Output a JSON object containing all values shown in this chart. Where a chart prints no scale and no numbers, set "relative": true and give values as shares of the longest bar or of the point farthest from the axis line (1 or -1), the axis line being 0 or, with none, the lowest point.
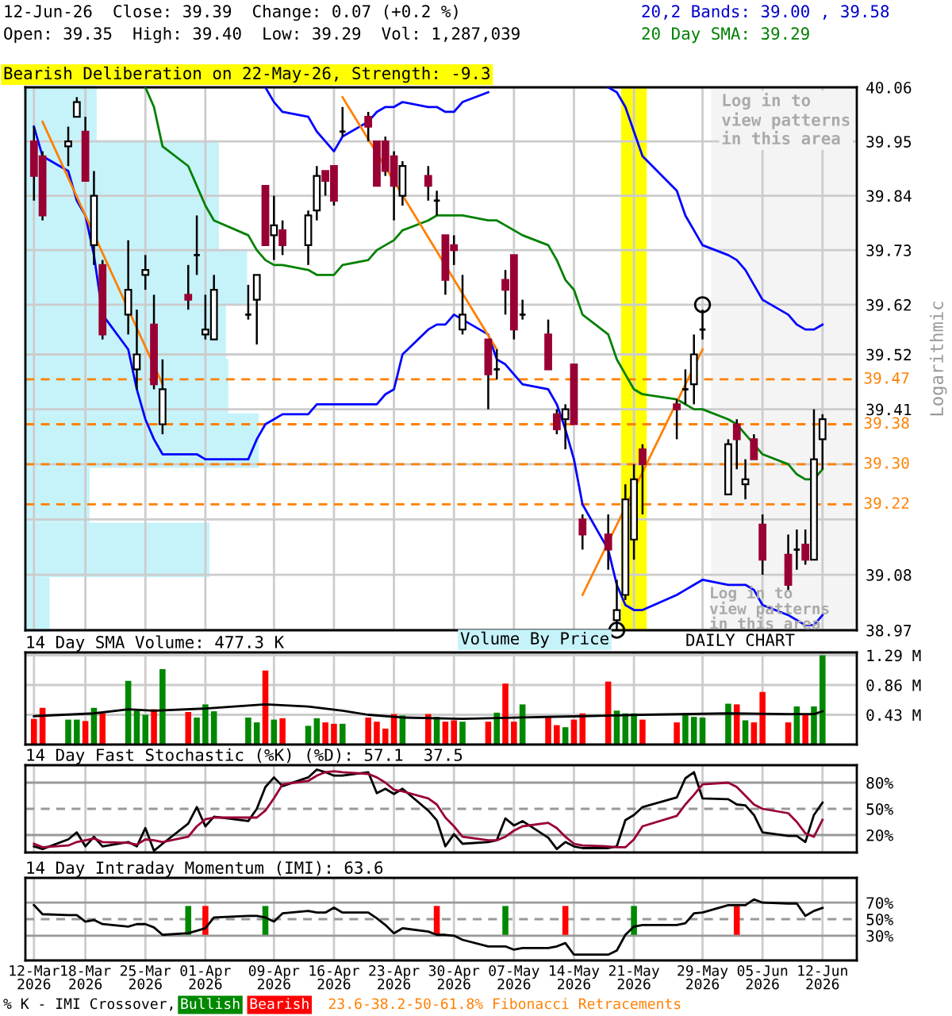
{
  "chart_data": [
    {
      "type": "candlestick",
      "title": "12-Jun-26  Close: 39.39  Change: 0.07 (+0.2 %)",
      "subtitle": "Open: 39.35  High: 39.40  Low: 39.29  Vol: 1,287,039",
      "ylabel": "Logarithmic",
      "x": [
        "2026-03-12",
        "2026-03-13",
        "2026-03-16",
        "2026-03-17",
        "2026-03-18",
        "2026-03-19",
        "2026-03-20",
        "2026-03-23",
        "2026-03-24",
        "2026-03-25",
        "2026-03-26",
        "2026-03-27",
        "2026-03-30",
        "2026-03-31",
        "2026-04-01",
        "2026-04-02",
        "2026-04-06",
        "2026-04-07",
        "2026-04-08",
        "2026-04-09",
        "2026-04-10",
        "2026-04-13",
        "2026-04-14",
        "2026-04-15",
        "2026-04-16",
        "2026-04-17",
        "2026-04-20",
        "2026-04-21",
        "2026-04-22",
        "2026-04-23",
        "2026-04-24",
        "2026-04-27",
        "2026-04-28",
        "2026-04-29",
        "2026-04-30",
        "2026-05-01",
        "2026-05-04",
        "2026-05-05",
        "2026-05-06",
        "2026-05-07",
        "2026-05-08",
        "2026-05-11",
        "2026-05-12",
        "2026-05-13",
        "2026-05-14",
        "2026-05-15",
        "2026-05-18",
        "2026-05-19",
        "2026-05-20",
        "2026-05-21",
        "2026-05-22",
        "2026-05-26",
        "2026-05-27",
        "2026-05-28",
        "2026-05-29",
        "2026-06-01",
        "2026-06-02",
        "2026-06-03",
        "2026-06-04",
        "2026-06-05",
        "2026-06-08",
        "2026-06-09",
        "2026-06-10",
        "2026-06-11",
        "2026-06-12"
      ],
      "ohlc": [
        [
          39.95,
          39.98,
          39.83,
          39.88
        ],
        [
          39.92,
          39.93,
          39.79,
          39.8
        ],
        [
          39.94,
          39.98,
          39.9,
          39.95
        ],
        [
          40.0,
          40.04,
          40.0,
          40.03
        ],
        [
          39.97,
          40.0,
          39.87,
          39.87
        ],
        [
          39.74,
          39.89,
          39.7,
          39.84
        ],
        [
          39.7,
          39.71,
          39.55,
          39.56
        ],
        [
          39.6,
          39.75,
          39.56,
          39.65
        ],
        [
          39.49,
          39.61,
          39.45,
          39.52
        ],
        [
          39.68,
          39.72,
          39.65,
          39.69
        ],
        [
          39.58,
          39.64,
          39.45,
          39.46
        ],
        [
          39.38,
          39.51,
          39.36,
          39.45
        ],
        [
          39.64,
          39.7,
          39.61,
          39.63
        ],
        [
          39.72,
          39.8,
          39.68,
          39.72
        ],
        [
          39.56,
          39.64,
          39.55,
          39.57
        ],
        [
          39.55,
          39.68,
          39.55,
          39.65
        ],
        [
          39.6,
          39.66,
          39.59,
          39.6
        ],
        [
          39.63,
          39.68,
          39.54,
          39.68
        ],
        [
          39.86,
          39.86,
          39.74,
          39.74
        ],
        [
          39.76,
          39.84,
          39.71,
          39.78
        ],
        [
          39.77,
          39.79,
          39.72,
          39.74
        ],
        [
          39.74,
          39.81,
          39.7,
          39.8
        ],
        [
          39.81,
          39.9,
          39.79,
          39.88
        ],
        [
          39.89,
          39.89,
          39.84,
          39.87
        ],
        [
          39.9,
          39.9,
          39.82,
          39.83
        ],
        [
          39.97,
          40.02,
          39.96,
          39.97
        ],
        [
          40.0,
          40.01,
          39.95,
          39.98
        ],
        [
          39.95,
          39.95,
          39.86,
          39.86
        ],
        [
          39.95,
          39.96,
          39.88,
          39.89
        ],
        [
          39.92,
          39.93,
          39.79,
          39.86
        ],
        [
          39.84,
          39.91,
          39.82,
          39.9
        ],
        [
          39.88,
          39.9,
          39.83,
          39.86
        ],
        [
          39.83,
          39.85,
          39.8,
          39.83
        ],
        [
          39.76,
          39.76,
          39.64,
          39.67
        ],
        [
          39.74,
          39.76,
          39.7,
          39.73
        ],
        [
          39.57,
          39.68,
          39.56,
          39.6
        ],
        [
          39.55,
          39.55,
          39.41,
          39.48
        ],
        [
          39.49,
          39.53,
          39.47,
          39.49
        ],
        [
          39.67,
          39.69,
          39.6,
          39.65
        ],
        [
          39.72,
          39.72,
          39.55,
          39.57
        ],
        [
          39.6,
          39.63,
          39.59,
          39.6
        ],
        [
          39.56,
          39.59,
          39.49,
          39.49
        ],
        [
          39.4,
          39.41,
          39.36,
          39.37
        ],
        [
          39.39,
          39.42,
          39.33,
          39.41
        ],
        [
          39.5,
          39.5,
          39.38,
          39.38
        ],
        [
          39.19,
          39.2,
          39.13,
          39.16
        ],
        [
          39.16,
          39.2,
          39.09,
          39.13
        ],
        [
          38.99,
          39.07,
          38.97,
          39.01
        ],
        [
          39.04,
          39.26,
          39.03,
          39.23
        ],
        [
          39.15,
          39.3,
          39.11,
          39.27
        ],
        [
          39.33,
          39.34,
          39.2,
          39.3
        ],
        [
          39.42,
          39.43,
          39.35,
          39.41
        ],
        [
          39.45,
          39.49,
          39.42,
          39.45
        ],
        [
          39.46,
          39.56,
          39.42,
          39.52
        ],
        [
          39.57,
          39.61,
          39.55,
          39.57
        ],
        [
          39.24,
          39.35,
          39.24,
          39.34
        ],
        [
          39.38,
          39.39,
          39.29,
          39.35
        ],
        [
          39.26,
          39.31,
          39.23,
          39.27
        ],
        [
          39.35,
          39.36,
          39.31,
          39.31
        ],
        [
          39.18,
          39.2,
          39.08,
          39.11
        ],
        [
          39.12,
          39.16,
          39.05,
          39.06
        ],
        [
          39.13,
          39.17,
          39.09,
          39.13
        ],
        [
          39.14,
          39.17,
          39.1,
          39.11
        ],
        [
          39.11,
          39.41,
          39.11,
          39.31
        ],
        [
          39.35,
          39.4,
          39.29,
          39.39
        ]
      ],
      "colors": [
        "#990033",
        "#990033",
        "#ffffff",
        "#ffffff",
        "#990033",
        "#ffffff",
        "#990033",
        "#ffffff",
        "#ffffff",
        "#ffffff",
        "#990033",
        "#ffffff",
        "#990033",
        "#000000",
        "#ffffff",
        "#ffffff",
        "#000000",
        "#ffffff",
        "#990033",
        "#ffffff",
        "#990033",
        "#ffffff",
        "#ffffff",
        "#990033",
        "#990033",
        "#000000",
        "#990033",
        "#990033",
        "#990033",
        "#990033",
        "#ffffff",
        "#990033",
        "#000000",
        "#990033",
        "#990033",
        "#ffffff",
        "#990033",
        "#000000",
        "#990033",
        "#990033",
        "#000000",
        "#990033",
        "#990033",
        "#ffffff",
        "#990033",
        "#990033",
        "#990033",
        "#ffffff",
        "#ffffff",
        "#ffffff",
        "#990033",
        "#990033",
        "#000000",
        "#ffffff",
        "#000000",
        "#ffffff",
        "#990033",
        "#ffffff",
        "#990033",
        "#990033",
        "#990033",
        "#000000",
        "#990033",
        "#ffffff",
        "#ffffff"
      ],
      "series": [
        {
          "type": "line",
          "color": "#0000ff",
          "values": [
            null,
            null,
            null,
            null,
            null,
            null,
            null,
            null,
            null,
            null,
            null,
            null,
            null,
            null,
            null,
            null,
            null,
            null,
            40.06,
            40.03,
            40.01,
            40.0,
            39.97,
            39.95,
            39.93,
            39.96,
            39.99,
            40.01,
            40.02,
            40.02,
            40.03,
            40.02,
            40.02,
            40.01,
            40.01,
            40.03,
            40.05,
            null,
            null,
            null,
            null,
            null,
            null,
            null,
            null,
            null,
            40.06,
            40.05,
            40.02,
            39.97,
            39.92,
            39.85,
            39.8,
            39.77,
            39.74,
            39.72,
            39.71,
            39.69,
            39.66,
            39.63,
            39.6,
            39.58,
            39.57,
            39.57,
            39.58
          ]
        },
        {
          "type": "line",
          "color": "#0000ff",
          "values": [
            39.98,
            39.92,
            39.89,
            39.83,
            39.8,
            39.72,
            39.6,
            39.53,
            39.45,
            39.39,
            39.35,
            39.32,
            39.32,
            39.32,
            39.31,
            39.31,
            39.31,
            39.35,
            39.38,
            39.39,
            39.4,
            39.4,
            39.42,
            39.42,
            39.42,
            39.42,
            39.42,
            39.42,
            39.44,
            39.45,
            39.52,
            39.57,
            39.58,
            39.58,
            39.6,
            39.59,
            39.56,
            39.51,
            39.5,
            39.48,
            39.46,
            39.45,
            39.42,
            39.37,
            39.31,
            39.22,
            39.13,
            39.06,
            39.02,
            39.01,
            39.01,
            39.04,
            39.05,
            39.06,
            39.07,
            39.06,
            39.06,
            39.06,
            39.05,
            39.02,
            39.0,
            38.99,
            38.98,
            38.98,
            39.0
          ]
        },
        {
          "type": "line",
          "color": "#008000",
          "values": [
            null,
            null,
            null,
            null,
            null,
            null,
            null,
            null,
            null,
            40.06,
            40.02,
            39.94,
            39.9,
            39.86,
            39.82,
            39.79,
            39.76,
            39.73,
            39.71,
            39.7,
            39.7,
            39.69,
            39.68,
            39.68,
            39.68,
            39.7,
            39.71,
            39.73,
            39.74,
            39.75,
            39.77,
            39.79,
            39.8,
            39.8,
            39.8,
            39.8,
            39.79,
            39.79,
            39.78,
            39.77,
            39.76,
            39.74,
            39.71,
            39.67,
            39.65,
            39.6,
            39.56,
            39.51,
            39.48,
            39.45,
            39.44,
            39.43,
            39.42,
            39.41,
            39.41,
            39.39,
            39.38,
            39.36,
            39.34,
            39.32,
            39.3,
            39.28,
            39.27,
            39.27,
            39.29
          ]
        },
        {
          "type": "line",
          "color": "#ff8000",
          "x": [
            "2026-03-13",
            "2026-03-27"
          ],
          "values": [
            39.99,
            39.46
          ]
        },
        {
          "type": "line",
          "color": "#ff8000",
          "x": [
            "2026-04-17",
            "2026-05-05"
          ],
          "values": [
            40.04,
            39.53
          ]
        },
        {
          "type": "line",
          "color": "#ff8000",
          "x": [
            "2026-05-15",
            "2026-05-29"
          ],
          "values": [
            39.04,
            39.53
          ]
        },
        {
          "type": "scatter",
          "color": "#000000",
          "marker": "circle",
          "x": [
            "2026-05-19",
            "2026-05-29"
          ],
          "values": [
            38.97,
            39.62
          ]
        }
      ],
      "log": true,
      "ylim": [
        38.97,
        40.06
      ],
      "yticks": [
        38.97,
        39.08,
        {
          "value": 39.19,
          "label": null
        },
        {
          "value": 39.3,
          "label": null
        },
        39.41,
        39.52,
        39.62,
        39.73,
        39.84,
        39.95,
        40.06
      ],
      "xlim": [
        "2026-03-11",
        "2026-06-16"
      ],
      "xticks": [
        {
          "value": "2026-03-12",
          "label": null
        },
        {
          "value": "2026-03-18",
          "label": null
        },
        {
          "value": "2026-03-25",
          "label": null
        },
        {
          "value": "2026-04-01",
          "label": null
        },
        {
          "value": "2026-04-09",
          "label": null
        },
        {
          "value": "2026-04-16",
          "label": null
        },
        {
          "value": "2026-04-23",
          "label": null
        },
        {
          "value": "2026-04-30",
          "label": null
        },
        {
          "value": "2026-05-07",
          "label": null
        },
        {
          "value": "2026-05-14",
          "label": null
        },
        {
          "value": "2026-05-21",
          "label": null
        },
        {
          "value": "2026-05-29",
          "label": null
        },
        {
          "value": "2026-06-05",
          "label": null
        },
        {
          "value": "2026-06-12",
          "label": null
        }
      ],
      "tick_labels": "y",
      "grid": true,
      "ref_lines": [
        {
          "axis": "y",
          "value": 39.47,
          "label": "39.47",
          "color": "#ff8000",
          "line_style": "dashed"
        },
        {
          "axis": "y",
          "value": 39.38,
          "label": "39.38",
          "color": "#ff8000",
          "line_style": "dashed"
        },
        {
          "axis": "y",
          "value": 39.3,
          "label": "39.30",
          "color": "#ff8000",
          "line_style": "dashed"
        },
        {
          "axis": "y",
          "value": 39.22,
          "label": "39.22",
          "color": "#ff8000",
          "line_style": "dashed"
        }
      ],
      "bands": [
        {
          "axis": "x",
          "from": "2026-05-30",
          "to": "2026-06-16",
          "label": "Log in to\nview patterns\nin this area",
          "color": "#f4f4f4"
        },
        {
          "axis": "x",
          "from": "2026-05-19T12:00",
          "to": "2026-05-22T12:00",
          "color": "#ffff00"
        }
      ],
      "annotations": [
        "20,2 Bands: 39.00 , 39.58",
        "20 Day SMA: 39.29",
        "Bearish Deliberation on 22-May-26, Strength: -9.3",
        "DAILY CHART",
        "Log in to\nview patterns\nin this area",
        "23.6-38.2-50-61.8% Fibonacci Retracements",
        "Volume By Price"
      ]
    },
    {
      "type": "bar",
      "orientation": "horizontal",
      "relative": true,
      "color": "#c6f3fa",
      "categories": [
        null,
        null,
        null,
        null,
        null,
        null,
        null,
        null,
        null,
        null
      ],
      "values": [
        0.31,
        0.83,
        0.83,
        0.95,
        0.86,
        0.87,
        1,
        0.28,
        0.79,
        0.11
      ]
    },
    {
      "type": "bar",
      "title": "14 Day SMA Volume: 477.3 K",
      "x": [
        "2026-03-12",
        "2026-03-13",
        "2026-03-16",
        "2026-03-17",
        "2026-03-18",
        "2026-03-19",
        "2026-03-20",
        "2026-03-23",
        "2026-03-24",
        "2026-03-25",
        "2026-03-26",
        "2026-03-27",
        "2026-03-30",
        "2026-03-31",
        "2026-04-01",
        "2026-04-02",
        "2026-04-06",
        "2026-04-07",
        "2026-04-08",
        "2026-04-09",
        "2026-04-10",
        "2026-04-13",
        "2026-04-14",
        "2026-04-15",
        "2026-04-16",
        "2026-04-17",
        "2026-04-20",
        "2026-04-21",
        "2026-04-22",
        "2026-04-23",
        "2026-04-24",
        "2026-04-27",
        "2026-04-28",
        "2026-04-29",
        "2026-04-30",
        "2026-05-01",
        "2026-05-04",
        "2026-05-05",
        "2026-05-06",
        "2026-05-07",
        "2026-05-08",
        "2026-05-11",
        "2026-05-12",
        "2026-05-13",
        "2026-05-14",
        "2026-05-15",
        "2026-05-18",
        "2026-05-19",
        "2026-05-20",
        "2026-05-21",
        "2026-05-22",
        "2026-05-26",
        "2026-05-27",
        "2026-05-28",
        "2026-05-29",
        "2026-06-01",
        "2026-06-02",
        "2026-06-03",
        "2026-06-04",
        "2026-06-05",
        "2026-06-08",
        "2026-06-09",
        "2026-06-10",
        "2026-06-11",
        "2026-06-12"
      ],
      "series": [
        {
          "type": "bar",
          "values": [
            0.37,
            0.53,
            0.36,
            0.36,
            0.34,
            0.53,
            0.45,
            0.92,
            0.49,
            0.43,
            0.51,
            1.09,
            0.47,
            0.39,
            0.58,
            0.48,
            0.39,
            0.32,
            1.07,
            0.36,
            0.38,
            0.27,
            0.38,
            0.32,
            0.3,
            0.3,
            0.39,
            0.33,
            0.23,
            0.44,
            0.42,
            0.44,
            0.4,
            0.33,
            0.35,
            0.33,
            0.33,
            0.46,
            0.88,
            0.33,
            0.58,
            0.41,
            0.28,
            0.25,
            0.36,
            0.45,
            0.91,
            0.49,
            0.45,
            0.45,
            0.36,
            0.32,
            0.45,
            0.4,
            0.39,
            0.59,
            0.58,
            0.35,
            0.32,
            0.76,
            0.32,
            0.55,
            0.43,
            0.55,
            1.29
          ],
          "colors": [
            "#ff0000",
            "#ff0000",
            "#008800",
            "#008800",
            "#ff0000",
            "#008800",
            "#ff0000",
            "#008800",
            "#008800",
            "#008800",
            "#ff0000",
            "#008800",
            "#ff0000",
            "#008800",
            "#008800",
            "#008800",
            "#008800",
            "#008800",
            "#ff0000",
            "#008800",
            "#ff0000",
            "#008800",
            "#008800",
            "#ff0000",
            "#ff0000",
            "#008800",
            "#ff0000",
            "#ff0000",
            "#ff0000",
            "#ff0000",
            "#008800",
            "#ff0000",
            "#008800",
            "#ff0000",
            "#ff0000",
            "#008800",
            "#ff0000",
            "#008800",
            "#ff0000",
            "#ff0000",
            "#008800",
            "#ff0000",
            "#ff0000",
            "#008800",
            "#ff0000",
            "#ff0000",
            "#ff0000",
            "#008800",
            "#008800",
            "#008800",
            "#ff0000",
            "#ff0000",
            "#008800",
            "#008800",
            "#008800",
            "#008800",
            "#ff0000",
            "#008800",
            "#ff0000",
            "#ff0000",
            "#ff0000",
            "#008800",
            "#ff0000",
            "#008800",
            "#008800"
          ]
        },
        {
          "type": "line",
          "color": "#000000",
          "x": [
            "2026-03-12",
            "2026-03-19",
            "2026-03-23",
            "2026-03-26",
            "2026-04-01",
            "2026-04-08",
            "2026-04-13",
            "2026-04-17",
            "2026-04-20",
            "2026-04-24",
            "2026-05-01",
            "2026-05-08",
            "2026-05-15",
            "2026-05-22",
            "2026-06-01",
            "2026-06-08",
            "2026-06-11",
            "2026-06-12"
          ],
          "values": [
            0.41,
            0.45,
            0.51,
            0.49,
            0.52,
            0.58,
            0.55,
            0.49,
            0.43,
            0.39,
            0.37,
            0.39,
            0.41,
            0.43,
            0.45,
            0.44,
            0.44,
            0.48
          ]
        }
      ],
      "ylim": [
        0,
        1.33
      ],
      "yticks": [
        {
          "value": 0.43,
          "label": "0.43 M"
        },
        {
          "value": 0.86,
          "label": "0.86 M"
        },
        {
          "value": 1.29,
          "label": "1.29 M"
        }
      ],
      "xlim": [
        "2026-03-11",
        "2026-06-16"
      ],
      "xticks": [
        {
          "value": "2026-03-12",
          "label": null
        },
        {
          "value": "2026-03-18",
          "label": null
        },
        {
          "value": "2026-03-25",
          "label": null
        },
        {
          "value": "2026-04-01",
          "label": null
        },
        {
          "value": "2026-04-09",
          "label": null
        },
        {
          "value": "2026-04-16",
          "label": null
        },
        {
          "value": "2026-04-23",
          "label": null
        },
        {
          "value": "2026-04-30",
          "label": null
        },
        {
          "value": "2026-05-07",
          "label": null
        },
        {
          "value": "2026-05-14",
          "label": null
        },
        {
          "value": "2026-05-21",
          "label": null
        },
        {
          "value": "2026-05-29",
          "label": null
        },
        {
          "value": "2026-06-05",
          "label": null
        },
        {
          "value": "2026-06-12",
          "label": null
        }
      ],
      "tick_labels": "y",
      "grid": true
    },
    {
      "type": "line",
      "title": "14 Day Fast Stochastic (%K) (%D): 57.1  37.5",
      "x": [
        "2026-03-12",
        "2026-03-13",
        "2026-03-16",
        "2026-03-17",
        "2026-03-18",
        "2026-03-19",
        "2026-03-20",
        "2026-03-23",
        "2026-03-24",
        "2026-03-25",
        "2026-03-26",
        "2026-03-27",
        "2026-03-30",
        "2026-03-31",
        "2026-04-01",
        "2026-04-02",
        "2026-04-06",
        "2026-04-07",
        "2026-04-08",
        "2026-04-09",
        "2026-04-10",
        "2026-04-13",
        "2026-04-14",
        "2026-04-15",
        "2026-04-16",
        "2026-04-17",
        "2026-04-20",
        "2026-04-21",
        "2026-04-22",
        "2026-04-23",
        "2026-04-24",
        "2026-04-27",
        "2026-04-28",
        "2026-04-29",
        "2026-04-30",
        "2026-05-01",
        "2026-05-04",
        "2026-05-05",
        "2026-05-06",
        "2026-05-07",
        "2026-05-08",
        "2026-05-11",
        "2026-05-12",
        "2026-05-13",
        "2026-05-14",
        "2026-05-15",
        "2026-05-18",
        "2026-05-19",
        "2026-05-20",
        "2026-05-21",
        "2026-05-22",
        "2026-05-26",
        "2026-05-27",
        "2026-05-28",
        "2026-05-29",
        "2026-06-01",
        "2026-06-02",
        "2026-06-03",
        "2026-06-04",
        "2026-06-05",
        "2026-06-08",
        "2026-06-09",
        "2026-06-10",
        "2026-06-11",
        "2026-06-12"
      ],
      "series": [
        {
          "color": "#000000",
          "values": [
            7,
            4,
            15,
            23,
            7,
            18,
            7,
            12,
            7,
            28,
            2,
            10,
            33,
            52,
            30,
            41,
            36,
            50,
            75,
            86,
            76,
            86,
            95,
            92,
            88,
            88,
            92,
            68,
            73,
            67,
            73,
            48,
            37,
            7,
            21,
            10,
            12,
            14,
            39,
            31,
            36,
            17,
            4,
            12,
            7,
            5,
            5,
            7,
            37,
            43,
            52,
            63,
            85,
            92,
            62,
            61,
            55,
            54,
            43,
            23,
            19,
            19,
            12,
            43,
            57.1
          ]
        },
        {
          "color": "#990033",
          "values": [
            10,
            6,
            8,
            12,
            14,
            16,
            12,
            11,
            9,
            15,
            14,
            12,
            18,
            30,
            38,
            40,
            40,
            40,
            48,
            62,
            78,
            82,
            88,
            92,
            93,
            92,
            90,
            86,
            80,
            72,
            70,
            62,
            55,
            40,
            30,
            18,
            14,
            14,
            18,
            25,
            30,
            34,
            28,
            18,
            10,
            8,
            7,
            6,
            6,
            15,
            30,
            42,
            55,
            66,
            78,
            80,
            75,
            65,
            55,
            50,
            45,
            35,
            22,
            18,
            37.5
          ]
        }
      ],
      "ylim": [
        0,
        100
      ],
      "yticks": [
        {
          "value": 20,
          "label": "20%"
        },
        {
          "value": 50,
          "label": "50%"
        },
        {
          "value": 80,
          "label": "80%"
        }
      ],
      "ref_lines": [
        {
          "axis": "y",
          "value": 20,
          "color": "#999999",
          "line_style": "solid"
        },
        {
          "axis": "y",
          "value": 50,
          "color": "#999999",
          "line_style": "dashed"
        },
        {
          "axis": "y",
          "value": 80,
          "color": "#999999",
          "line_style": "solid"
        }
      ],
      "xlim": [
        "2026-03-11",
        "2026-06-16"
      ],
      "xticks": [
        {
          "value": "2026-03-12",
          "label": null
        },
        {
          "value": "2026-03-18",
          "label": null
        },
        {
          "value": "2026-03-25",
          "label": null
        },
        {
          "value": "2026-04-01",
          "label": null
        },
        {
          "value": "2026-04-09",
          "label": null
        },
        {
          "value": "2026-04-16",
          "label": null
        },
        {
          "value": "2026-04-23",
          "label": null
        },
        {
          "value": "2026-04-30",
          "label": null
        },
        {
          "value": "2026-05-07",
          "label": null
        },
        {
          "value": "2026-05-14",
          "label": null
        },
        {
          "value": "2026-05-21",
          "label": null
        },
        {
          "value": "2026-05-29",
          "label": null
        },
        {
          "value": "2026-06-05",
          "label": null
        },
        {
          "value": "2026-06-12",
          "label": null
        }
      ],
      "tick_labels": "y",
      "grid": "x"
    },
    {
      "type": "line",
      "title": "14 Day Intraday Momentum (IMI): 63.6",
      "legend": "bottom",
      "legend_title": "% K - IMI Crossover,",
      "x": [
        "2026-03-12",
        "2026-03-13",
        "2026-03-16",
        "2026-03-17",
        "2026-03-18",
        "2026-03-19",
        "2026-03-20",
        "2026-03-23",
        "2026-03-24",
        "2026-03-25",
        "2026-03-26",
        "2026-03-27",
        "2026-03-30",
        "2026-03-31",
        "2026-04-01",
        "2026-04-02",
        "2026-04-06",
        "2026-04-07",
        "2026-04-08",
        "2026-04-09",
        "2026-04-10",
        "2026-04-13",
        "2026-04-14",
        "2026-04-15",
        "2026-04-16",
        "2026-04-17",
        "2026-04-20",
        "2026-04-21",
        "2026-04-22",
        "2026-04-23",
        "2026-04-24",
        "2026-04-27",
        "2026-04-28",
        "2026-04-29",
        "2026-04-30",
        "2026-05-01",
        "2026-05-04",
        "2026-05-05",
        "2026-05-06",
        "2026-05-07",
        "2026-05-08",
        "2026-05-11",
        "2026-05-12",
        "2026-05-13",
        "2026-05-14",
        "2026-05-15",
        "2026-05-18",
        "2026-05-19",
        "2026-05-20",
        "2026-05-21",
        "2026-05-22",
        "2026-05-26",
        "2026-05-27",
        "2026-05-28",
        "2026-05-29",
        "2026-06-01",
        "2026-06-02",
        "2026-06-03",
        "2026-06-04",
        "2026-06-05",
        "2026-06-08",
        "2026-06-09",
        "2026-06-10",
        "2026-06-11",
        "2026-06-12"
      ],
      "series": [
        {
          "type": "bar",
          "name": "Bullish",
          "color": "#008800",
          "x": [
            "2026-03-30",
            "2026-04-08",
            "2026-05-06",
            "2026-05-21"
          ],
          "base": [
            31,
            31,
            31,
            31
          ],
          "values": [
            35,
            35,
            35,
            35
          ]
        },
        {
          "type": "bar",
          "name": "Bearish",
          "color": "#ff0000",
          "x": [
            "2026-04-01",
            "2026-04-28",
            "2026-05-13",
            "2026-06-02"
          ],
          "base": [
            31,
            31,
            31,
            31
          ],
          "values": [
            35,
            35,
            35,
            35
          ]
        },
        {
          "type": "line",
          "color": "#000000",
          "values": [
            67,
            56,
            55,
            55,
            47,
            49,
            44,
            41,
            44,
            44,
            40,
            31,
            33,
            36,
            39,
            52,
            54,
            54,
            52,
            47,
            57,
            60,
            58,
            58,
            64,
            58,
            58,
            51,
            43,
            33,
            39,
            35,
            31,
            31,
            30,
            25,
            17,
            17,
            17,
            13,
            15,
            15,
            17,
            21,
            7,
            7,
            7,
            12,
            31,
            41,
            43,
            43,
            45,
            57,
            58,
            67,
            67,
            67,
            74,
            70,
            69,
            69,
            54,
            60,
            63.6
          ]
        }
      ],
      "ylim": [
        0,
        100
      ],
      "yticks": [
        {
          "value": 30,
          "label": "30%"
        },
        {
          "value": 50,
          "label": "50%"
        },
        {
          "value": 70,
          "label": "70%"
        }
      ],
      "ref_lines": [
        {
          "axis": "y",
          "value": 30,
          "color": "#999999",
          "line_style": "solid"
        },
        {
          "axis": "y",
          "value": 50,
          "color": "#999999",
          "line_style": "dashed"
        },
        {
          "axis": "y",
          "value": 70,
          "color": "#999999",
          "line_style": "solid"
        }
      ],
      "xlim": [
        "2026-03-11",
        "2026-06-16"
      ],
      "xticks": [
        {
          "value": "2026-03-12",
          "label": "12-Mar\n2026"
        },
        {
          "value": "2026-03-18",
          "label": "18-Mar\n2026"
        },
        {
          "value": "2026-03-25",
          "label": "25-Mar\n2026"
        },
        {
          "value": "2026-04-01",
          "label": "01-Apr\n2026"
        },
        {
          "value": "2026-04-09",
          "label": "09-Apr\n2026"
        },
        {
          "value": "2026-04-16",
          "label": "16-Apr\n2026"
        },
        {
          "value": "2026-04-23",
          "label": "23-Apr\n2026"
        },
        {
          "value": "2026-04-30",
          "label": "30-Apr\n2026"
        },
        {
          "value": "2026-05-07",
          "label": "07-May\n2026"
        },
        {
          "value": "2026-05-14",
          "label": "14-May\n2026"
        },
        {
          "value": "2026-05-21",
          "label": "21-May\n2026"
        },
        {
          "value": "2026-05-29",
          "label": "29-May\n2026"
        },
        {
          "value": "2026-06-05",
          "label": "05-Jun\n2026"
        },
        {
          "value": "2026-06-12",
          "label": "12-Jun\n2026"
        }
      ],
      "grid": "x"
    }
  ]
}
